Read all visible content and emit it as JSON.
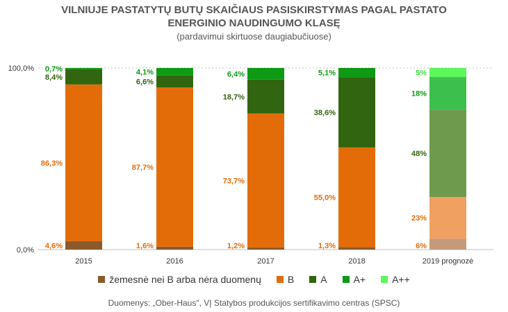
{
  "title_line1": "VILNIUJE PASTATYTŲ BUTŲ SKAIČIAUS PASISKIRSTYMAS PAGAL PASTATO",
  "title_line2": "ENERGINIO NAUDINGUMO KLASĘ",
  "subtitle": "(pardavimui skirtuose daugiabučiuose)",
  "source": "Duomenys: „Ober-Haus\", VĮ Statybos produkcijos sertifikavimo centras (SPSC)",
  "chart_data": {
    "type": "bar",
    "stacked": true,
    "percent": true,
    "categories": [
      "2015",
      "2016",
      "2017",
      "2018",
      "2019 prognozė"
    ],
    "ylim": [
      0,
      100
    ],
    "y_ticks": [
      "0,0%",
      "100,0%"
    ],
    "series": [
      {
        "name": "žemesnė nei B arba nėra duomenų",
        "color": "#8B5A2B",
        "values": [
          4.6,
          1.6,
          1.2,
          1.3,
          6
        ],
        "labels": [
          "4,6%",
          "1,6%",
          "1,2%",
          "1,3%",
          "6%"
        ],
        "label_color": "#E36C09"
      },
      {
        "name": "B",
        "color": "#E36C09",
        "values": [
          86.3,
          87.7,
          73.7,
          55.0,
          23
        ],
        "labels": [
          "86,3%",
          "87,7%",
          "73,7%",
          "55,0%",
          "23%"
        ],
        "label_color": "#E36C09"
      },
      {
        "name": "A",
        "color": "#31650F",
        "values": [
          8.4,
          6.6,
          18.7,
          38.6,
          48
        ],
        "labels": [
          "8,4%",
          "6,6%",
          "18,7%",
          "38,6%",
          "48%"
        ],
        "label_color": "#31650F"
      },
      {
        "name": "A+",
        "color": "#0E9A14",
        "values": [
          0.7,
          4.1,
          6.4,
          5.1,
          18
        ],
        "labels": [
          "0,7%",
          "4,1%",
          "6,4%",
          "5,1%",
          "18%"
        ],
        "label_color": "#0E9A14"
      },
      {
        "name": "A++",
        "color": "#5BF75B",
        "values": [
          0,
          0,
          0,
          0,
          5
        ],
        "labels": [
          "",
          "",
          "",
          "",
          "5%"
        ],
        "label_color": "#3EE03E"
      }
    ],
    "forecast_colors": [
      "#C49A7A",
      "#F0A060",
      "#6E9A4E",
      "#3CBF4C",
      "#5BF75B"
    ],
    "legend": [
      "žemesnė nei B arba nėra duomenų",
      "B",
      "A",
      "A+",
      "A++"
    ],
    "legend_position": "bottom",
    "grid": false
  }
}
